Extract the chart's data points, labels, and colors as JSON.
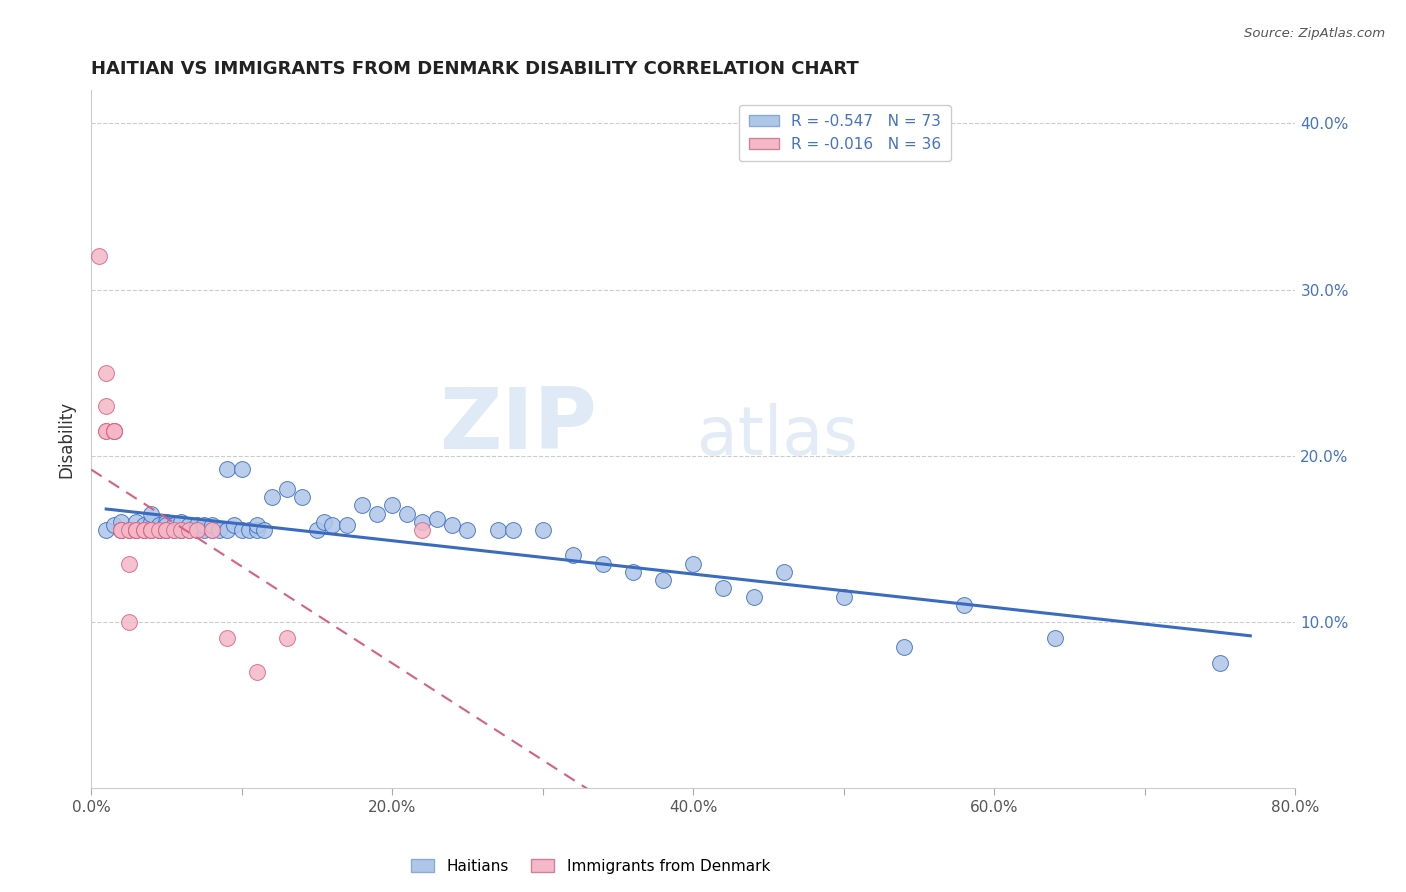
{
  "title": "HAITIAN VS IMMIGRANTS FROM DENMARK DISABILITY CORRELATION CHART",
  "source": "Source: ZipAtlas.com",
  "ylabel": "Disability",
  "watermark_zip": "ZIP",
  "watermark_atlas": "atlas",
  "legend_r1": "R = -0.547",
  "legend_n1": "N = 73",
  "legend_r2": "R = -0.016",
  "legend_n2": "N = 36",
  "label1": "Haitians",
  "label2": "Immigrants from Denmark",
  "color1": "#aec6e8",
  "color2": "#f4b8c8",
  "line_color1": "#3a6bbf",
  "line_color2": "#d96080",
  "xlim": [
    0.0,
    0.8
  ],
  "ylim": [
    0.0,
    0.42
  ],
  "x_ticks": [
    0.0,
    0.1,
    0.2,
    0.3,
    0.4,
    0.5,
    0.6,
    0.7,
    0.8
  ],
  "x_tick_labels": [
    "0.0%",
    "",
    "20.0%",
    "",
    "40.0%",
    "",
    "60.0%",
    "",
    "80.0%"
  ],
  "y_ticks": [
    0.1,
    0.2,
    0.3,
    0.4
  ],
  "y_tick_labels": [
    "10.0%",
    "20.0%",
    "30.0%",
    "40.0%"
  ],
  "haitian_x": [
    0.01,
    0.015,
    0.02,
    0.025,
    0.03,
    0.03,
    0.035,
    0.035,
    0.04,
    0.04,
    0.04,
    0.045,
    0.045,
    0.045,
    0.05,
    0.05,
    0.05,
    0.05,
    0.055,
    0.055,
    0.06,
    0.06,
    0.06,
    0.065,
    0.065,
    0.07,
    0.07,
    0.07,
    0.075,
    0.075,
    0.08,
    0.08,
    0.085,
    0.09,
    0.09,
    0.095,
    0.1,
    0.1,
    0.105,
    0.11,
    0.11,
    0.115,
    0.12,
    0.13,
    0.14,
    0.15,
    0.155,
    0.16,
    0.17,
    0.18,
    0.19,
    0.2,
    0.21,
    0.22,
    0.23,
    0.24,
    0.25,
    0.27,
    0.28,
    0.3,
    0.32,
    0.34,
    0.36,
    0.38,
    0.4,
    0.42,
    0.44,
    0.46,
    0.5,
    0.54,
    0.58,
    0.64,
    0.75
  ],
  "haitian_y": [
    0.155,
    0.158,
    0.16,
    0.155,
    0.155,
    0.16,
    0.155,
    0.158,
    0.155,
    0.16,
    0.165,
    0.155,
    0.155,
    0.158,
    0.155,
    0.155,
    0.16,
    0.158,
    0.155,
    0.158,
    0.155,
    0.155,
    0.16,
    0.155,
    0.158,
    0.155,
    0.156,
    0.158,
    0.155,
    0.158,
    0.155,
    0.158,
    0.155,
    0.192,
    0.155,
    0.158,
    0.155,
    0.192,
    0.155,
    0.155,
    0.158,
    0.155,
    0.175,
    0.18,
    0.175,
    0.155,
    0.16,
    0.158,
    0.158,
    0.17,
    0.165,
    0.17,
    0.165,
    0.16,
    0.162,
    0.158,
    0.155,
    0.155,
    0.155,
    0.155,
    0.14,
    0.135,
    0.13,
    0.125,
    0.135,
    0.12,
    0.115,
    0.13,
    0.115,
    0.085,
    0.11,
    0.09,
    0.075
  ],
  "denmark_x": [
    0.005,
    0.01,
    0.01,
    0.01,
    0.01,
    0.015,
    0.015,
    0.015,
    0.015,
    0.02,
    0.02,
    0.02,
    0.02,
    0.025,
    0.025,
    0.025,
    0.03,
    0.03,
    0.03,
    0.035,
    0.035,
    0.04,
    0.04,
    0.04,
    0.045,
    0.05,
    0.05,
    0.055,
    0.06,
    0.065,
    0.07,
    0.08,
    0.09,
    0.11,
    0.13,
    0.22
  ],
  "denmark_y": [
    0.32,
    0.25,
    0.23,
    0.215,
    0.215,
    0.215,
    0.215,
    0.215,
    0.215,
    0.155,
    0.155,
    0.155,
    0.155,
    0.155,
    0.135,
    0.1,
    0.155,
    0.155,
    0.155,
    0.155,
    0.155,
    0.155,
    0.155,
    0.155,
    0.155,
    0.155,
    0.155,
    0.155,
    0.155,
    0.155,
    0.155,
    0.155,
    0.09,
    0.07,
    0.09,
    0.155
  ],
  "haitian_line_x": [
    0.01,
    0.77
  ],
  "denmark_line_x": [
    0.0,
    0.8
  ]
}
